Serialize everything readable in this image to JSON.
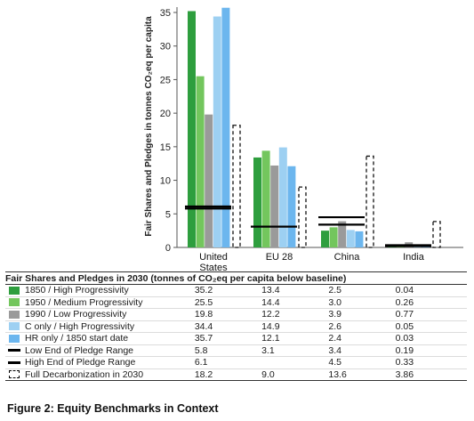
{
  "chart_data": {
    "type": "bar",
    "ylabel": "Fair Shares and Pledges in tonnes CO₂eq per capita",
    "ylim": [
      0,
      35
    ],
    "yticks": [
      0,
      5,
      10,
      15,
      20,
      25,
      30,
      35
    ],
    "grid": false,
    "categories": [
      "United States",
      "EU 28",
      "China",
      "India"
    ],
    "category_labels": [
      [
        "United",
        "States"
      ],
      [
        "EU 28"
      ],
      [
        "China"
      ],
      [
        "India"
      ]
    ],
    "series": [
      {
        "name": "1850 / High Progressivity",
        "color": "#2e9e3e",
        "values": [
          35.2,
          13.4,
          2.5,
          0.04
        ]
      },
      {
        "name": "1950 / Medium Progressivity",
        "color": "#73c65d",
        "values": [
          25.5,
          14.4,
          3.0,
          0.26
        ]
      },
      {
        "name": "1990 / Low Progressivity",
        "color": "#9a9a9a",
        "values": [
          19.8,
          12.2,
          3.9,
          0.77
        ]
      },
      {
        "name": "C only / High Progressivity",
        "color": "#9dd0f2",
        "values": [
          34.4,
          14.9,
          2.6,
          0.05
        ]
      },
      {
        "name": "HR only / 1850 start date",
        "color": "#6cb6ee",
        "values": [
          35.7,
          12.1,
          2.4,
          0.03
        ]
      }
    ],
    "pledge_low": {
      "name": "Low End of Pledge Range",
      "values": [
        5.8,
        3.1,
        3.4,
        0.19
      ],
      "display": [
        "5.8",
        "3.1",
        "3.4",
        "0.19"
      ]
    },
    "pledge_high": {
      "name": "High End of Pledge Range",
      "values": [
        6.1,
        null,
        4.5,
        0.33
      ],
      "display": [
        "6.1",
        "",
        "4.5",
        "0.33"
      ]
    },
    "decarbonization": {
      "name": "Full Decarbonization in 2030",
      "values": [
        18.2,
        9.0,
        13.6,
        3.86
      ],
      "display": [
        "18.2",
        "9.0",
        "13.6",
        "3.86"
      ]
    }
  },
  "table": {
    "header": "Fair Shares and Pledges in 2030 (tonnes of CO₂eq per capita below baseline)",
    "display_values": [
      [
        "35.2",
        "13.4",
        "2.5",
        "0.04"
      ],
      [
        "25.5",
        "14.4",
        "3.0",
        "0.26"
      ],
      [
        "19.8",
        "12.2",
        "3.9",
        "0.77"
      ],
      [
        "34.4",
        "14.9",
        "2.6",
        "0.05"
      ],
      [
        "35.7",
        "12.1",
        "2.4",
        "0.03"
      ]
    ]
  },
  "caption": "Figure 2: Equity Benchmarks in Context"
}
